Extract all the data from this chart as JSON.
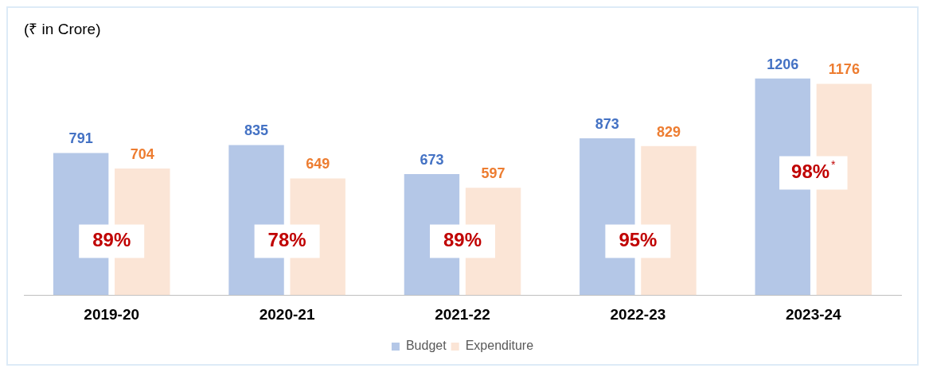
{
  "chart_data": {
    "type": "bar",
    "title": "(₹ in Crore)",
    "categories": [
      "2019-20",
      "2020-21",
      "2021-22",
      "2022-23",
      "2023-24"
    ],
    "series": [
      {
        "name": "Budget",
        "color": "#b4c7e7",
        "values": [
          791,
          835,
          673,
          873,
          1206
        ]
      },
      {
        "name": "Expenditure",
        "color": "#fbe5d6",
        "values": [
          704,
          649,
          597,
          829,
          1176
        ]
      }
    ],
    "data_labels": true,
    "legend": "bottom",
    "grid": false,
    "annotations": [
      {
        "text": "89%",
        "x": "2019-20",
        "y": 300
      },
      {
        "text": "78%",
        "x": "2020-21",
        "y": 300
      },
      {
        "text": "89%",
        "x": "2021-22",
        "y": 300
      },
      {
        "text": "95%",
        "x": "2022-23",
        "y": 300
      },
      {
        "text": "98%$^{*}$",
        "x": "2023-24",
        "y": 680
      }
    ]
  }
}
